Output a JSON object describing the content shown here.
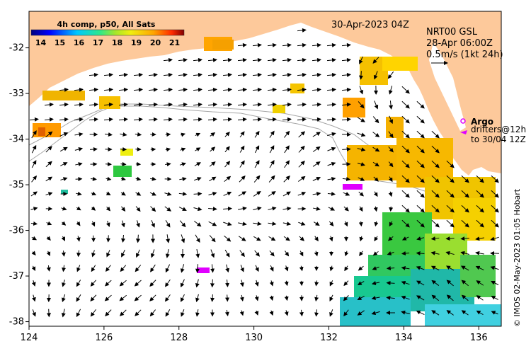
{
  "map": {
    "lon_range": [
      124,
      136.6
    ],
    "lat_range": [
      -38.1,
      -31.2
    ],
    "lon_ticks": [
      "124",
      "126",
      "128",
      "130",
      "132",
      "134",
      "136"
    ],
    "lat_ticks": [
      "-32",
      "-33",
      "-34",
      "-35",
      "-36",
      "-37",
      "-38"
    ],
    "land_color": "#fdc99b",
    "ocean_color": "#ffffff"
  },
  "colorbar": {
    "title": "4h comp, p50, All Sats",
    "ticks": [
      "14",
      "15",
      "16",
      "17",
      "18",
      "19",
      "20",
      "21"
    ],
    "range": [
      13.5,
      21.5
    ]
  },
  "timestamp": "30-Apr-2023 04Z",
  "current_info": {
    "line1": "NRT00 GSL",
    "line2": "28-Apr 06:00Z",
    "scale_label": "0.5m/s (1kt 24h)"
  },
  "argo_legend": {
    "argo_label": "Argo",
    "drifters_line1": "drifters@12h",
    "drifters_line2": "to 30/04 12Z"
  },
  "credit": "© IMOS 02-May-2023 01:05 Hobart"
}
